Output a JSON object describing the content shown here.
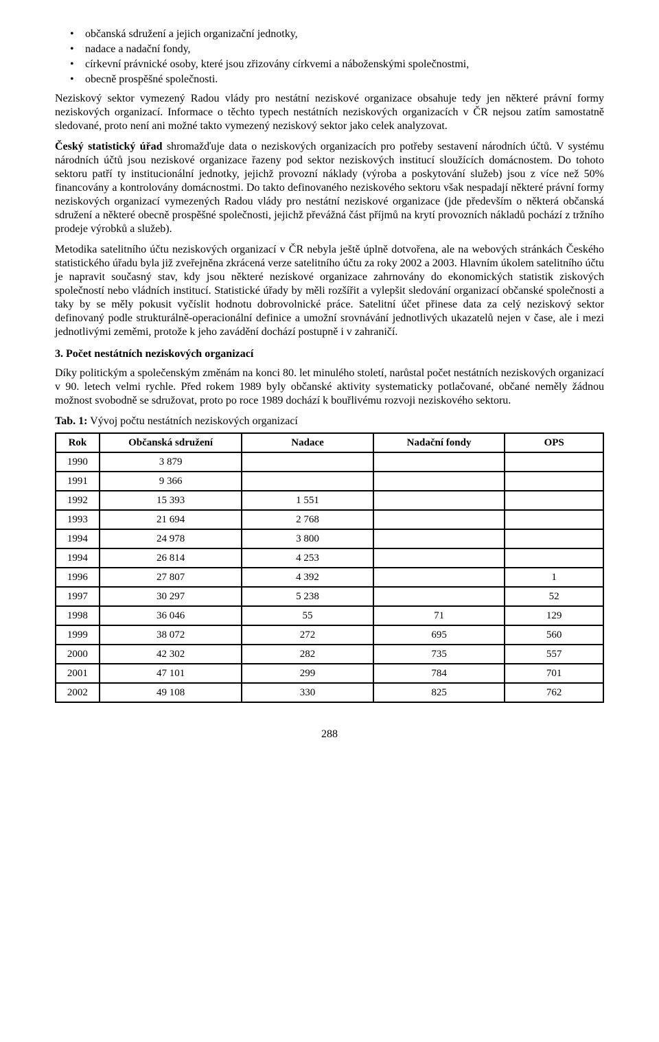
{
  "bullets": [
    "občanská sdružení a jejich organizační jednotky,",
    "nadace a nadační fondy,",
    "církevní právnické osoby, které jsou zřizovány církvemi a náboženskými společnostmi,",
    "obecně prospěšné společnosti."
  ],
  "paragraphs": {
    "p1": "Neziskový sektor vymezený Radou vlády pro nestátní neziskové organizace obsahuje tedy jen některé právní formy neziskových organizací. Informace o těchto typech nestátních neziskových organizacích v ČR nejsou zatím samostatně sledované, proto není ani možné takto vymezený neziskový sektor jako celek analyzovat.",
    "p2_lead": "Český statistický úřad",
    "p2_rest": " shromažďuje data o neziskových organizacích pro potřeby sestavení národních účtů. V systému národních účtů jsou neziskové organizace řazeny pod sektor neziskových institucí sloužících domácnostem. Do tohoto sektoru patří ty institucionální jednotky, jejichž provozní náklady (výroba a poskytování služeb) jsou z více než 50% financovány a kontrolovány domácnostmi. Do takto definovaného neziskového sektoru však nespadají některé právní formy neziskových organizací vymezených Radou vlády pro nestátní neziskové organizace (jde především o některá občanská sdružení a některé obecně prospěšné společnosti, jejichž převážná část příjmů na krytí provozních nákladů pochází z tržního prodeje výrobků a služeb).",
    "p3": "Metodika satelitního účtu neziskových organizací v ČR nebyla ještě úplně dotvořena, ale na webových stránkách Českého statistického úřadu byla již zveřejněna zkrácená verze satelitního účtu za roky 2002 a 2003. Hlavním úkolem satelitního účtu je napravit současný stav, kdy jsou některé neziskové organizace zahrnovány do ekonomických statistik ziskových společností nebo vládních institucí. Statistické úřady by měli rozšířit a vylepšit sledování organizací občanské společnosti a taky by se měly pokusit vyčíslit hodnotu dobrovolnické práce. Satelitní účet přinese data za celý neziskový sektor definovaný podle strukturálně-operacionální definice a umožní srovnávání jednotlivých ukazatelů nejen v čase, ale i mezi jednotlivými zeměmi, protože k jeho zavádění dochází postupně i v zahraničí.",
    "section_title": "3.   Počet nestátních neziskových organizací",
    "p4": "Díky politickým a společenským změnám na konci 80. let minulého století, narůstal počet nestátních neziskových organizací v 90. letech velmi rychle. Před rokem 1989 byly občanské aktivity systematicky potlačované, občané neměly žádnou možnost svobodně se sdružovat, proto po roce 1989 dochází k bouřlivému rozvoji neziskového sektoru.",
    "tab_caption_bold": "Tab. 1:",
    "tab_caption_rest": " Vývoj počtu nestátních neziskových organizací"
  },
  "table": {
    "headers": [
      "Rok",
      "Občanská sdružení",
      "Nadace",
      "Nadační fondy",
      "OPS"
    ],
    "rows": [
      [
        "1990",
        "3 879",
        "",
        "",
        ""
      ],
      [
        "1991",
        "9 366",
        "",
        "",
        ""
      ],
      [
        "1992",
        "15 393",
        "1 551",
        "",
        ""
      ],
      [
        "1993",
        "21 694",
        "2 768",
        "",
        ""
      ],
      [
        "1994",
        "24 978",
        "3 800",
        "",
        ""
      ],
      [
        "1994",
        "26 814",
        "4 253",
        "",
        ""
      ],
      [
        "1996",
        "27 807",
        "4 392",
        "",
        "1"
      ],
      [
        "1997",
        "30 297",
        "5 238",
        "",
        "52"
      ],
      [
        "1998",
        "36 046",
        "55",
        "71",
        "129"
      ],
      [
        "1999",
        "38 072",
        "272",
        "695",
        "560"
      ],
      [
        "2000",
        "42 302",
        "282",
        "735",
        "557"
      ],
      [
        "2001",
        "47 101",
        "299",
        "784",
        "701"
      ],
      [
        "2002",
        "49 108",
        "330",
        "825",
        "762"
      ]
    ]
  },
  "page_number": "288"
}
